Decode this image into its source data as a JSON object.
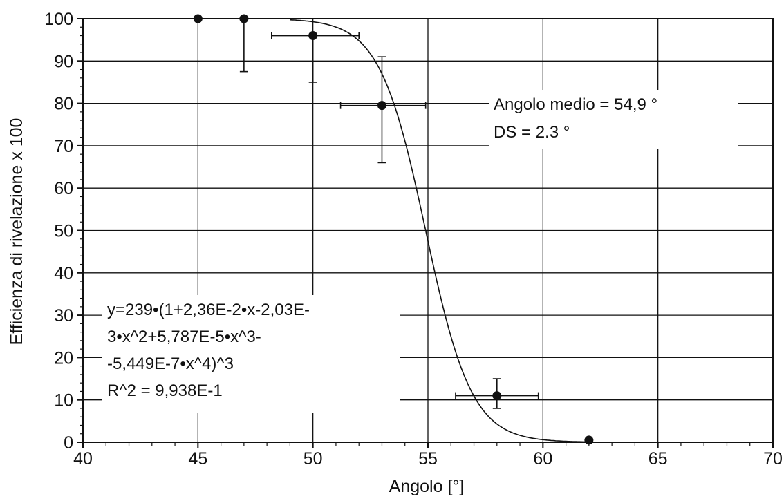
{
  "chart_data": {
    "type": "scatter",
    "title": "",
    "xlabel": "Angolo [°]",
    "ylabel": "Efficienza di rivelazione x 100",
    "xlim": [
      40,
      70
    ],
    "ylim": [
      0,
      100
    ],
    "x_ticks": [
      "40",
      "45",
      "50",
      "55",
      "60",
      "65",
      "70"
    ],
    "y_ticks": [
      "0",
      "10",
      "20",
      "30",
      "40",
      "50",
      "60",
      "70",
      "80",
      "90",
      "100"
    ],
    "grid": true,
    "points": [
      {
        "x": 45,
        "y": 100
      },
      {
        "x": 47,
        "y": 100,
        "y_err_low": 87.5,
        "y_err_high": 100
      },
      {
        "x": 50,
        "y": 96,
        "y_err_low": 85,
        "y_err_high": 96,
        "x_err_low": 48.2,
        "x_err_high": 52
      },
      {
        "x": 53,
        "y": 79.5,
        "y_err_low": 66,
        "y_err_high": 91,
        "x_err_low": 51.2,
        "x_err_high": 54.9
      },
      {
        "x": 58,
        "y": 11,
        "y_err_low": 8,
        "y_err_high": 15,
        "x_err_low": 56.2,
        "x_err_high": 59.8
      },
      {
        "x": 62,
        "y": 0.5
      }
    ],
    "fit_curve": {
      "type": "sigmoid",
      "midpoint": 54.9,
      "width": 1.0
    },
    "annotations": {
      "angle": [
        "Angolo medio = 54,9 °",
        "DS = 2.3 °"
      ],
      "equation": [
        "y=239•(1+2,36E-2•x-2,03E-",
        "3•x^2+5,787E-5•x^3-",
        "-5,449E-7•x^4)^3",
        "R^2 = 9,938E-1"
      ]
    }
  }
}
